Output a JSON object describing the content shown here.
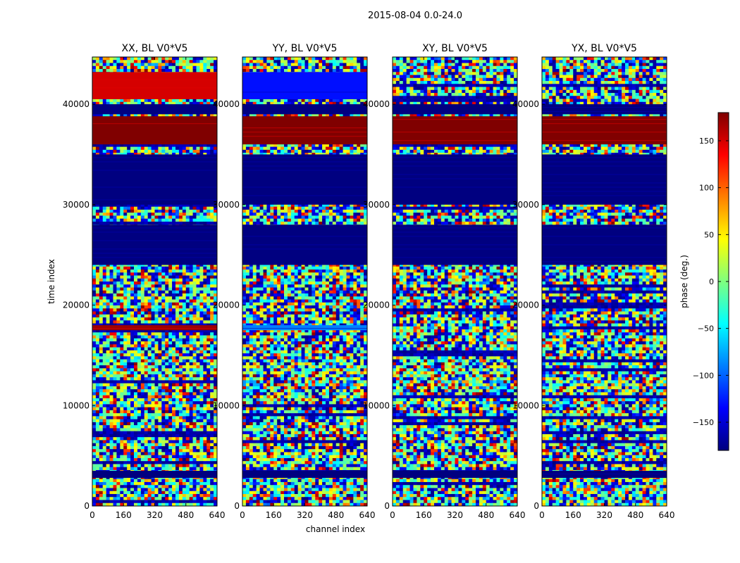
{
  "figure": {
    "title": "2015-08-04 0.0-24.0"
  },
  "chart_data": {
    "type": "heatmap",
    "suptitle": "2015-08-04 0.0-24.0",
    "xlabel": "channel index",
    "ylabel": "time index",
    "xlim": [
      0,
      640
    ],
    "ylim": [
      0,
      44700
    ],
    "x_ticks": [
      "0",
      "160",
      "320",
      "480",
      "640"
    ],
    "y_ticks": [
      "0",
      "10000",
      "20000",
      "30000",
      "40000"
    ],
    "colormap": "jet",
    "colorbar": {
      "label": "phase (deg.)",
      "range": [
        -180,
        180
      ],
      "ticks": [
        "150",
        "100",
        "50",
        "0",
        "−50",
        "−100",
        "−150"
      ],
      "tick_values": [
        150,
        100,
        50,
        0,
        -50,
        -100,
        -150
      ],
      "colors": [
        "#00007f",
        "#0000ff",
        "#007fff",
        "#00ffff",
        "#7fff7f",
        "#ffff00",
        "#ff7f00",
        "#ff0000",
        "#7f0000"
      ]
    },
    "panels": [
      {
        "title": "XX, BL V0*V5",
        "bands": [
          {
            "y0": 24000,
            "y1": 28000,
            "phase": -180
          },
          {
            "y0": 30000,
            "y1": 35000,
            "phase": -180
          },
          {
            "y0": 36000,
            "y1": 38800,
            "phase": 180
          },
          {
            "y0": 39000,
            "y1": 40000,
            "phase": -180
          },
          {
            "y0": 40500,
            "y1": 43200,
            "phase": 150
          },
          {
            "y0": 17500,
            "y1": 18000,
            "phase": 170
          },
          {
            "y0": 2800,
            "y1": 3500,
            "phase": -180
          }
        ]
      },
      {
        "title": "YY, BL V0*V5",
        "bands": [
          {
            "y0": 24000,
            "y1": 28000,
            "phase": -180
          },
          {
            "y0": 30000,
            "y1": 35000,
            "phase": -180
          },
          {
            "y0": 36000,
            "y1": 38800,
            "phase": 180
          },
          {
            "y0": 39000,
            "y1": 40000,
            "phase": -180
          },
          {
            "y0": 40500,
            "y1": 43200,
            "phase": -130
          },
          {
            "y0": 17500,
            "y1": 18000,
            "phase": -90
          },
          {
            "y0": 2800,
            "y1": 3500,
            "phase": -180
          }
        ]
      },
      {
        "title": "XY, BL V0*V5",
        "bands": [
          {
            "y0": 24000,
            "y1": 28000,
            "phase": -180
          },
          {
            "y0": 30000,
            "y1": 35000,
            "phase": -180
          },
          {
            "y0": 36000,
            "y1": 38800,
            "phase": 180
          },
          {
            "y0": 39000,
            "y1": 40000,
            "phase": -180
          },
          {
            "y0": 2800,
            "y1": 3500,
            "phase": -180
          }
        ]
      },
      {
        "title": "YX, BL V0*V5",
        "bands": [
          {
            "y0": 24000,
            "y1": 28000,
            "phase": -180
          },
          {
            "y0": 30000,
            "y1": 35000,
            "phase": -180
          },
          {
            "y0": 36000,
            "y1": 38800,
            "phase": 180
          },
          {
            "y0": 39000,
            "y1": 40000,
            "phase": -180
          },
          {
            "y0": 2800,
            "y1": 3500,
            "phase": -180
          }
        ]
      }
    ]
  }
}
